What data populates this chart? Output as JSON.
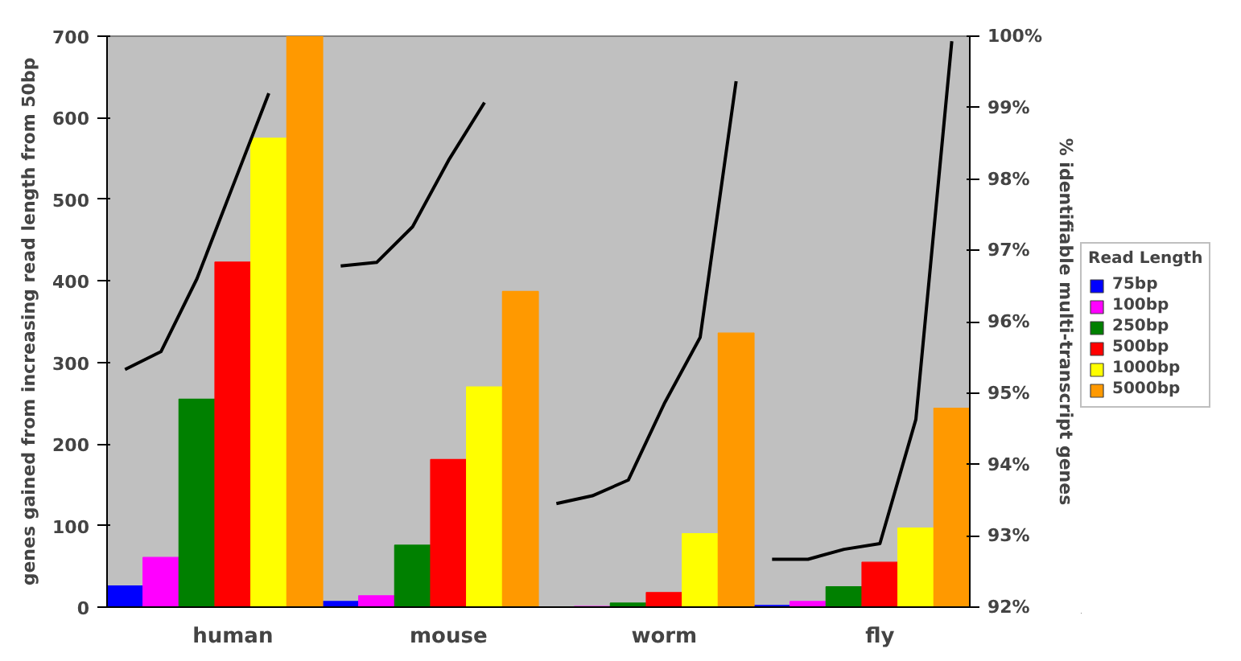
{
  "chart_data": {
    "type": "bar",
    "ylabel": "genes gained from increasing read length from 50bp",
    "y2label": "% identifiable multi-transcript genes",
    "legend_title": "Read Length",
    "categories": [
      null,
      null,
      null,
      "human",
      null,
      null,
      null,
      null,
      null,
      "mouse",
      null,
      null,
      null,
      null,
      null,
      "worm",
      null,
      null,
      null,
      null,
      null,
      "fly",
      null,
      null
    ],
    "series": [
      {
        "name": "75bp",
        "color": "#0000ff",
        "values": [
          26,
          null,
          null,
          null,
          null,
          null,
          7,
          null,
          null,
          null,
          null,
          null,
          0,
          null,
          null,
          null,
          null,
          null,
          2,
          null,
          null,
          null,
          null,
          null
        ]
      },
      {
        "name": "100bp",
        "color": "#ff00ff",
        "values": [
          null,
          61,
          null,
          null,
          null,
          null,
          null,
          14,
          null,
          null,
          null,
          null,
          null,
          1,
          null,
          null,
          null,
          null,
          null,
          7,
          null,
          null,
          null,
          null
        ]
      },
      {
        "name": "250bp",
        "color": "#008000",
        "values": [
          null,
          null,
          255,
          null,
          null,
          null,
          null,
          null,
          76,
          null,
          null,
          null,
          null,
          null,
          5,
          null,
          null,
          null,
          null,
          null,
          25,
          null,
          null,
          null
        ]
      },
      {
        "name": "500bp",
        "color": "#ff0000",
        "values": [
          null,
          null,
          null,
          423,
          null,
          null,
          null,
          null,
          null,
          181,
          null,
          null,
          null,
          null,
          null,
          18,
          null,
          null,
          null,
          null,
          null,
          55,
          null,
          null
        ]
      },
      {
        "name": "1000bp",
        "color": "#ffff00",
        "values": [
          null,
          null,
          null,
          null,
          575,
          null,
          null,
          null,
          null,
          null,
          270,
          null,
          null,
          null,
          null,
          null,
          90,
          null,
          null,
          null,
          null,
          null,
          97,
          null
        ]
      },
      {
        "name": "5000bp",
        "color": "#ff9900",
        "values": [
          null,
          null,
          null,
          null,
          null,
          700,
          null,
          null,
          null,
          null,
          null,
          387,
          null,
          null,
          null,
          null,
          null,
          336,
          null,
          null,
          null,
          null,
          null,
          244
        ]
      },
      {
        "type": "line",
        "axis": "y2",
        "color": "#000000",
        "values": [
          95.33,
          95.58,
          96.6,
          97.9,
          99.2,
          null,
          null,
          null,
          null,
          null,
          null,
          null,
          null,
          null,
          null,
          null,
          null,
          null,
          null,
          null,
          null,
          null,
          null,
          null
        ]
      },
      {
        "type": "line",
        "axis": "y2",
        "color": "#000000",
        "values": [
          null,
          null,
          null,
          null,
          null,
          null,
          96.78,
          96.83,
          97.33,
          98.26,
          99.07,
          null,
          null,
          null,
          null,
          null,
          null,
          null,
          null,
          null,
          null,
          null,
          null,
          null
        ]
      },
      {
        "type": "line",
        "axis": "y2",
        "color": "#000000",
        "values": [
          null,
          null,
          null,
          null,
          null,
          null,
          null,
          null,
          null,
          null,
          null,
          null,
          93.45,
          93.56,
          93.78,
          94.85,
          95.78,
          99.37,
          null,
          null,
          null,
          null,
          null,
          null
        ]
      },
      {
        "type": "line",
        "axis": "y2",
        "color": "#000000",
        "values": [
          null,
          null,
          null,
          null,
          null,
          null,
          null,
          null,
          null,
          null,
          null,
          null,
          null,
          null,
          null,
          null,
          null,
          null,
          92.67,
          92.67,
          92.81,
          92.89,
          94.63,
          99.93
        ]
      }
    ],
    "ylim": [
      0,
      700
    ],
    "yticks": [
      0,
      100,
      200,
      300,
      400,
      500,
      600,
      700
    ],
    "y2lim": [
      92,
      100
    ],
    "y2ticks": [
      {
        "value": 92,
        "label": "92%"
      },
      {
        "value": 93,
        "label": "93%"
      },
      {
        "value": 94,
        "label": "94%"
      },
      {
        "value": 95,
        "label": "95%"
      },
      {
        "value": 96,
        "label": "96%"
      },
      {
        "value": 97,
        "label": "97%"
      },
      {
        "value": 98,
        "label": "98%"
      },
      {
        "value": 99,
        "label": "99%"
      },
      {
        "value": 100,
        "label": "100%"
      }
    ],
    "grid": false,
    "legend": "right"
  }
}
